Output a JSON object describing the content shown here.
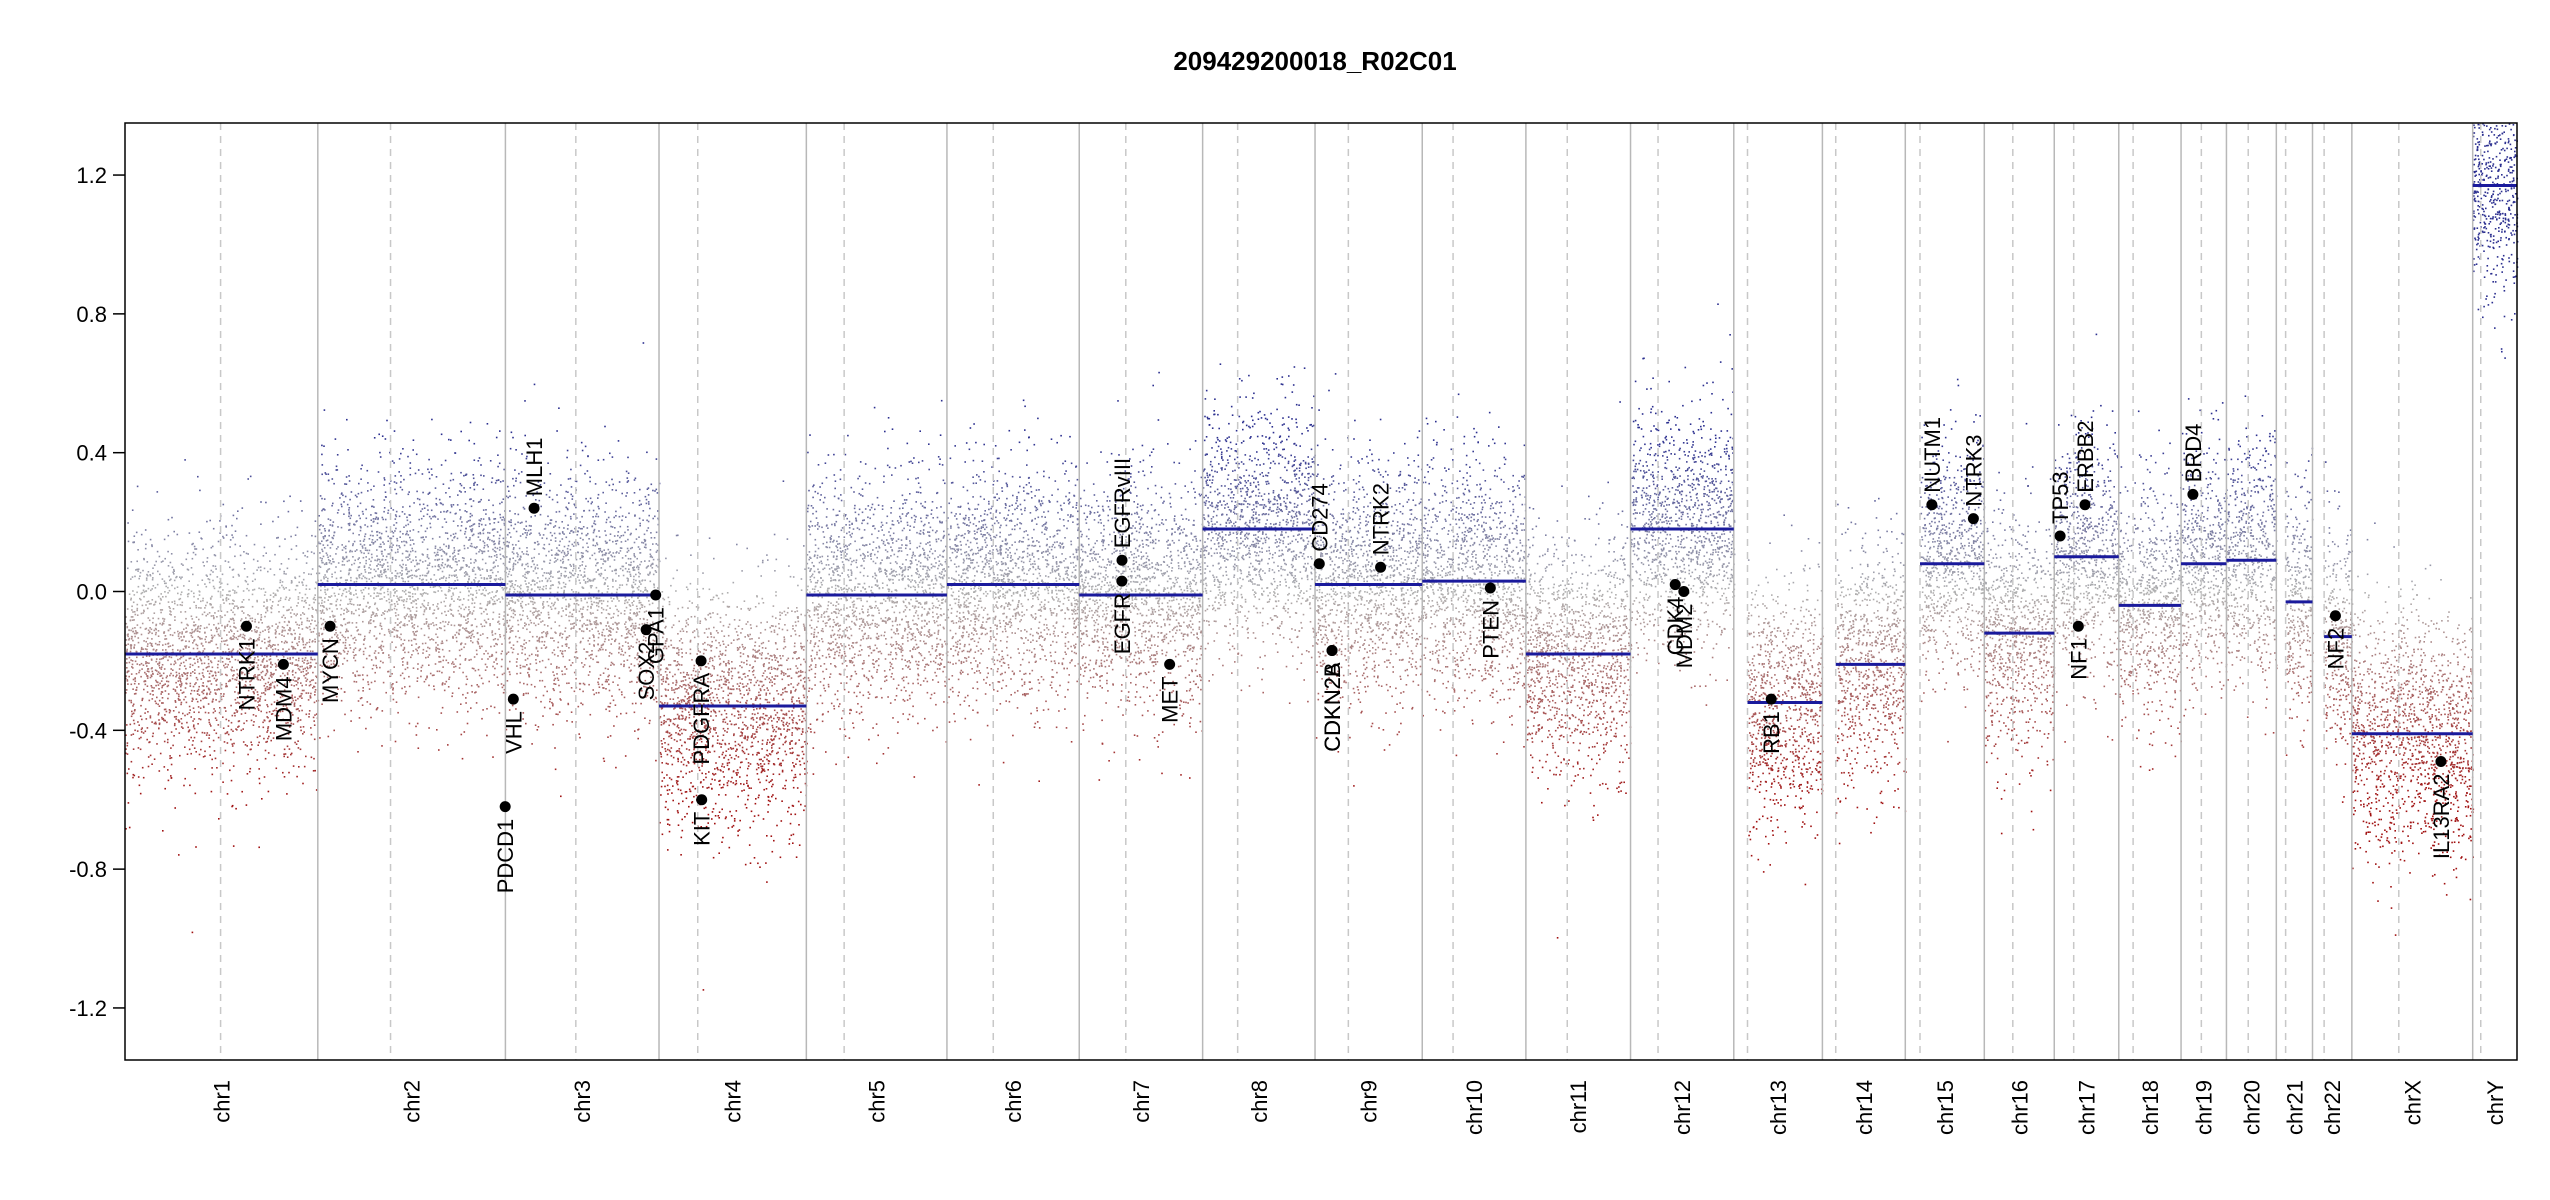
{
  "chart_data": {
    "type": "scatter",
    "title": "209429200018_R02C01",
    "xlabel": "",
    "ylabel": "",
    "ylim": [
      -1.35,
      1.35
    ],
    "yticks": [
      "-1.2",
      "-0.8",
      "-0.4",
      "0.0",
      "0.4",
      "0.8",
      "1.2"
    ],
    "grid": false,
    "colors": {
      "gain": "#2b2f8f",
      "neutral": "#b0b0b0",
      "loss": "#a01010",
      "segment": "#1a1a9c",
      "gene": "#000000",
      "boundary": "#b8b8b8",
      "centromere": "#c8c8c8"
    },
    "chromosomes": [
      {
        "name": "chr1",
        "length": 248.9,
        "centromere": 123.4,
        "arms": [
          {
            "from": 0,
            "to": 248.9,
            "value": -0.18
          }
        ]
      },
      {
        "name": "chr2",
        "length": 242.2,
        "centromere": 93.9,
        "arms": [
          {
            "from": 0,
            "to": 242.2,
            "value": 0.02
          }
        ]
      },
      {
        "name": "chr3",
        "length": 198.3,
        "centromere": 90.9,
        "arms": [
          {
            "from": 0,
            "to": 198.3,
            "value": -0.01
          }
        ]
      },
      {
        "name": "chr4",
        "length": 190.2,
        "centromere": 50.0,
        "arms": [
          {
            "from": 0,
            "to": 190.2,
            "value": -0.33
          }
        ]
      },
      {
        "name": "chr5",
        "length": 181.5,
        "centromere": 48.8,
        "arms": [
          {
            "from": 0,
            "to": 181.5,
            "value": -0.01
          }
        ]
      },
      {
        "name": "chr6",
        "length": 170.8,
        "centromere": 59.8,
        "arms": [
          {
            "from": 0,
            "to": 170.8,
            "value": 0.02
          }
        ]
      },
      {
        "name": "chr7",
        "length": 159.3,
        "centromere": 60.1,
        "arms": [
          {
            "from": 0,
            "to": 159.3,
            "value": -0.01
          }
        ]
      },
      {
        "name": "chr8",
        "length": 145.1,
        "centromere": 45.2,
        "arms": [
          {
            "from": 0,
            "to": 145.1,
            "value": 0.18
          }
        ]
      },
      {
        "name": "chr9",
        "length": 138.4,
        "centromere": 43.0,
        "arms": [
          {
            "from": 0,
            "to": 138.4,
            "value": 0.02
          }
        ]
      },
      {
        "name": "chr10",
        "length": 133.8,
        "centromere": 39.8,
        "arms": [
          {
            "from": 0,
            "to": 133.8,
            "value": 0.03
          }
        ]
      },
      {
        "name": "chr11",
        "length": 135.1,
        "centromere": 53.4,
        "arms": [
          {
            "from": 0,
            "to": 135.1,
            "value": -0.18
          }
        ]
      },
      {
        "name": "chr12",
        "length": 133.3,
        "centromere": 35.5,
        "arms": [
          {
            "from": 0,
            "to": 133.3,
            "value": 0.18
          }
        ]
      },
      {
        "name": "chr13",
        "length": 114.4,
        "centromere": 17.7,
        "arms": [
          {
            "from": 17.7,
            "to": 114.4,
            "value": -0.32
          }
        ]
      },
      {
        "name": "chr14",
        "length": 107.0,
        "centromere": 17.2,
        "arms": [
          {
            "from": 17.2,
            "to": 107.0,
            "value": -0.21
          }
        ]
      },
      {
        "name": "chr15",
        "length": 102.0,
        "centromere": 19.0,
        "arms": [
          {
            "from": 19.0,
            "to": 102.0,
            "value": 0.08
          }
        ]
      },
      {
        "name": "chr16",
        "length": 90.3,
        "centromere": 36.8,
        "arms": [
          {
            "from": 0,
            "to": 90.3,
            "value": -0.12
          }
        ]
      },
      {
        "name": "chr17",
        "length": 83.3,
        "centromere": 25.1,
        "arms": [
          {
            "from": 0,
            "to": 83.3,
            "value": 0.1
          }
        ]
      },
      {
        "name": "chr18",
        "length": 80.4,
        "centromere": 18.5,
        "arms": [
          {
            "from": 0,
            "to": 80.4,
            "value": -0.04
          }
        ]
      },
      {
        "name": "chr19",
        "length": 58.6,
        "centromere": 26.2,
        "arms": [
          {
            "from": 0,
            "to": 58.6,
            "value": 0.08
          }
        ]
      },
      {
        "name": "chr20",
        "length": 64.4,
        "centromere": 28.1,
        "arms": [
          {
            "from": 0,
            "to": 64.4,
            "value": 0.09
          }
        ]
      },
      {
        "name": "chr21",
        "length": 46.7,
        "centromere": 12.0,
        "arms": [
          {
            "from": 12.0,
            "to": 46.7,
            "value": -0.03
          }
        ]
      },
      {
        "name": "chr22",
        "length": 50.8,
        "centromere": 15.0,
        "arms": [
          {
            "from": 15.0,
            "to": 50.8,
            "value": -0.13
          }
        ]
      },
      {
        "name": "chrX",
        "length": 156.0,
        "centromere": 60.6,
        "arms": [
          {
            "from": 0,
            "to": 156.0,
            "value": -0.41
          }
        ]
      },
      {
        "name": "chrY",
        "length": 57.2,
        "centromere": 10.4,
        "arms": [
          {
            "from": 0,
            "to": 57.2,
            "value": 1.17
          }
        ]
      }
    ],
    "genes": [
      {
        "name": "NTRK1",
        "chr": "chr1",
        "pos": 156.8,
        "value": -0.1
      },
      {
        "name": "MDM4",
        "chr": "chr1",
        "pos": 204.5,
        "value": -0.21
      },
      {
        "name": "MYCN",
        "chr": "chr2",
        "pos": 15.9,
        "value": -0.1
      },
      {
        "name": "VHL",
        "chr": "chr3",
        "pos": 10.2,
        "value": -0.31
      },
      {
        "name": "PDCD1",
        "chr": "chr2",
        "pos": 241.9,
        "value": -0.62
      },
      {
        "name": "MLH1",
        "chr": "chr3",
        "pos": 37.0,
        "value": 0.24
      },
      {
        "name": "SOX2",
        "chr": "chr3",
        "pos": 181.7,
        "value": -0.11
      },
      {
        "name": "GPA1",
        "chr": "chr3",
        "pos": 194.0,
        "value": -0.01
      },
      {
        "name": "PDGFRA",
        "chr": "chr4",
        "pos": 54.3,
        "value": -0.2
      },
      {
        "name": "KIT",
        "chr": "chr4",
        "pos": 55.1,
        "value": -0.6
      },
      {
        "name": "EGFR",
        "chr": "chr7",
        "pos": 55.0,
        "value": 0.03
      },
      {
        "name": "EGFRvIII",
        "chr": "chr7",
        "pos": 55.2,
        "value": 0.09
      },
      {
        "name": "MET",
        "chr": "chr7",
        "pos": 116.7,
        "value": -0.21
      },
      {
        "name": "CD274",
        "chr": "chr9",
        "pos": 5.5,
        "value": 0.08
      },
      {
        "name": "CDKN2A",
        "chr": "chr9",
        "pos": 21.9,
        "value": -0.17
      },
      {
        "name": "CDKN2B",
        "chr": "chr9",
        "pos": 22.0,
        "value": -0.17
      },
      {
        "name": "NTRK2",
        "chr": "chr9",
        "pos": 84.6,
        "value": 0.07
      },
      {
        "name": "PTEN",
        "chr": "chr10",
        "pos": 87.9,
        "value": 0.01
      },
      {
        "name": "CDK4",
        "chr": "chr12",
        "pos": 57.7,
        "value": 0.02
      },
      {
        "name": "MDM2",
        "chr": "chr12",
        "pos": 68.8,
        "value": 0.0
      },
      {
        "name": "RB1",
        "chr": "chr13",
        "pos": 48.3,
        "value": -0.31
      },
      {
        "name": "NUTM1",
        "chr": "chr15",
        "pos": 34.3,
        "value": 0.25
      },
      {
        "name": "NTRK3",
        "chr": "chr15",
        "pos": 87.9,
        "value": 0.21
      },
      {
        "name": "TP53",
        "chr": "chr17",
        "pos": 7.6,
        "value": 0.16
      },
      {
        "name": "NF1",
        "chr": "chr17",
        "pos": 31.1,
        "value": -0.1
      },
      {
        "name": "ERBB2",
        "chr": "chr17",
        "pos": 39.7,
        "value": 0.25
      },
      {
        "name": "BRD4",
        "chr": "chr19",
        "pos": 15.3,
        "value": 0.28
      },
      {
        "name": "NF2",
        "chr": "chr22",
        "pos": 29.6,
        "value": -0.07
      },
      {
        "name": "IL13RA2",
        "chr": "chrX",
        "pos": 115.0,
        "value": -0.49
      }
    ]
  }
}
